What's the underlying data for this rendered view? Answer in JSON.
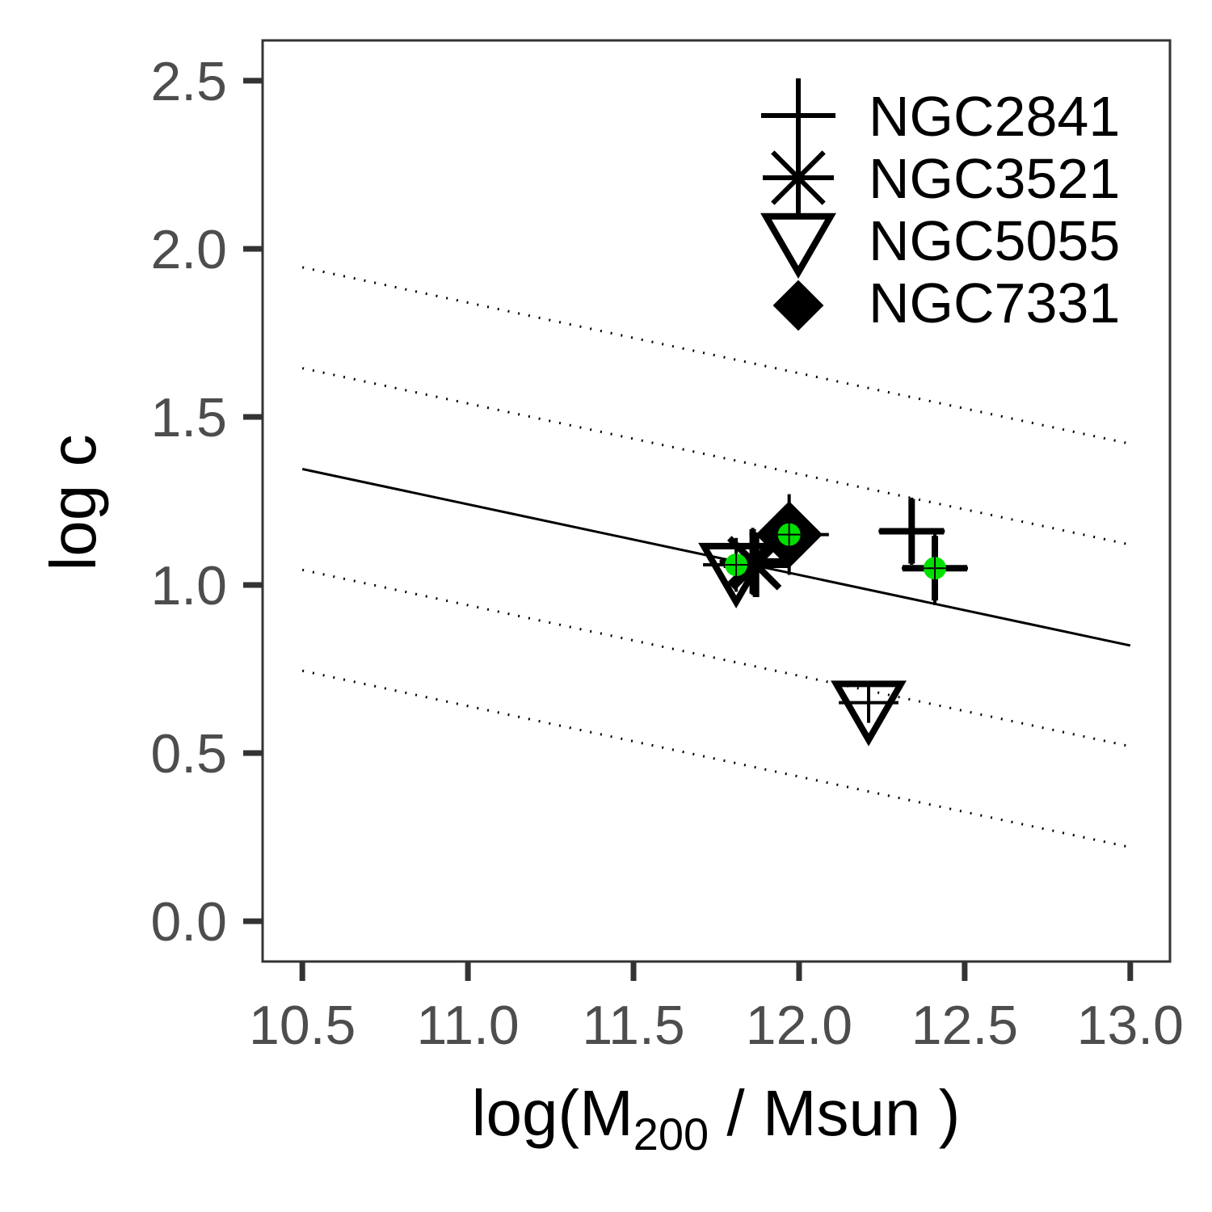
{
  "chart_data": {
    "type": "scatter",
    "xlabel": "log(M",
    "xlabel_sub": "200",
    "xlabel_tail": " / Msun )",
    "ylabel": "log c",
    "xlim": [
      10.38,
      13.12
    ],
    "ylim": [
      -0.12,
      2.62
    ],
    "xticks": [
      10.5,
      11.0,
      11.5,
      12.0,
      12.5,
      13.0
    ],
    "xtick_labels": [
      "10.5",
      "11.0",
      "11.5",
      "12.0",
      "12.5",
      "13.0"
    ],
    "yticks": [
      0.0,
      0.5,
      1.0,
      1.5,
      2.0,
      2.5
    ],
    "ytick_labels": [
      "0.0",
      "0.5",
      "1.0",
      "1.5",
      "2.0",
      "2.5"
    ],
    "grid": false,
    "legend_position": "top-right",
    "colors": {
      "markers": "#000000",
      "highlight": "#00e000",
      "axis": "#333333"
    },
    "relation": {
      "x": [
        10.5,
        13.0
      ],
      "y": [
        1.345,
        0.82
      ],
      "scatter_offsets": [
        0.6,
        0.3,
        -0.3,
        -0.6
      ]
    },
    "series": [
      {
        "name": "NGC2841",
        "marker": "plus",
        "points": [
          {
            "x": 12.34,
            "y": 1.16,
            "xerr": 0.1,
            "yerr": 0.1
          },
          {
            "x": 12.41,
            "y": 1.05,
            "xerr": 0.1,
            "yerr": 0.11,
            "highlight": true
          }
        ]
      },
      {
        "name": "NGC3521",
        "marker": "asterisk",
        "points": [
          {
            "x": 11.86,
            "y": 1.07,
            "xerr": 0.1,
            "yerr": 0.1
          },
          {
            "x": 11.87,
            "y": 1.06,
            "xerr": 0.08,
            "yerr": 0.08
          }
        ]
      },
      {
        "name": "NGC5055",
        "marker": "triangle-down",
        "points": [
          {
            "x": 11.81,
            "y": 1.06,
            "xerr": 0.1,
            "yerr": 0.08,
            "highlight": true
          },
          {
            "x": 12.21,
            "y": 0.65,
            "xerr": 0.09,
            "yerr": 0.06
          }
        ]
      },
      {
        "name": "NGC7331",
        "marker": "diamond",
        "points": [
          {
            "x": 11.97,
            "y": 1.15,
            "xerr": 0.12,
            "yerr": 0.12,
            "highlight": true
          }
        ]
      }
    ]
  }
}
